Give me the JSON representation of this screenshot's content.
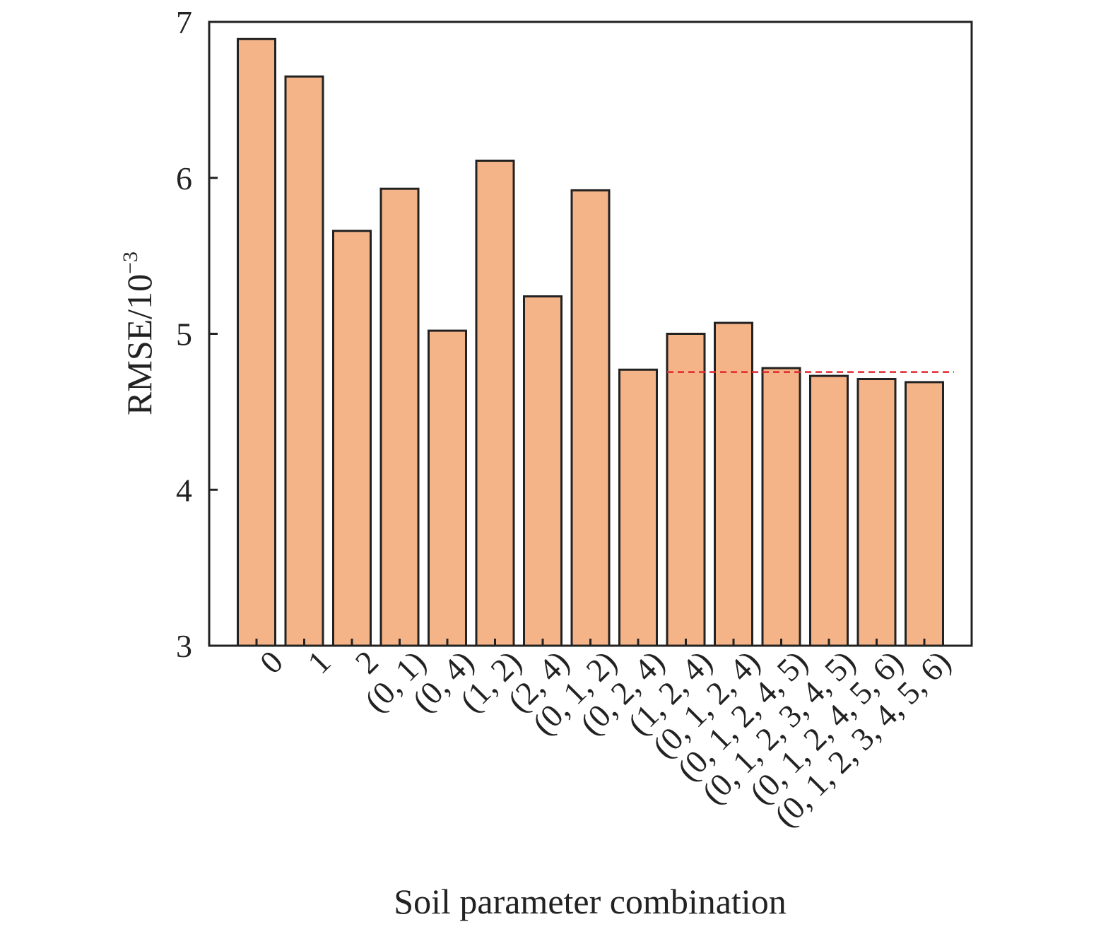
{
  "chart_data": {
    "type": "bar",
    "categories": [
      "0",
      "1",
      "2",
      "(0, 1)",
      "(0, 4)",
      "(1, 2)",
      "(2, 4)",
      "(0, 1, 2)",
      "(0, 2, 4)",
      "(1, 2, 4)",
      "(0, 1, 2, 4)",
      "(0, 1, 2, 4, 5)",
      "(0, 1, 2, 3, 4, 5)",
      "(0, 1, 2, 4, 5, 6)",
      "(0, 1, 2, 3, 4, 5, 6)"
    ],
    "values": [
      6.89,
      6.65,
      5.66,
      5.93,
      5.02,
      6.11,
      5.24,
      5.92,
      4.77,
      5.0,
      5.07,
      4.78,
      4.73,
      4.71,
      4.69
    ],
    "xlabel": "Soil parameter combination",
    "ylabel": "RMSE/10",
    "ylabel_exponent": "−3",
    "ylim": [
      3,
      7
    ],
    "yticks": [
      "3",
      "4",
      "5",
      "6",
      "7"
    ],
    "reference_line": {
      "value": 4.755,
      "style": "dashed",
      "color": "#e0282e"
    },
    "bar_color": "#f5b487",
    "bar_edge_color": "#222222",
    "grid": false,
    "legend": "none"
  }
}
